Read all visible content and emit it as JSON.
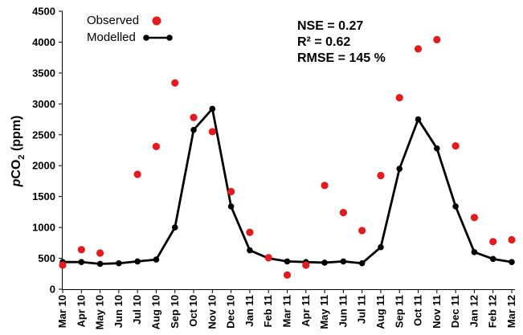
{
  "chart_data": {
    "type": "line",
    "title": "",
    "xlabel": "",
    "ylabel": {
      "italic_prefix": "p",
      "main": "CO",
      "subscript": "2",
      "suffix": " (ppm)"
    },
    "ylim": [
      0,
      4500
    ],
    "yticks": [
      "0",
      "500",
      "1000",
      "1500",
      "2000",
      "2500",
      "3000",
      "3500",
      "4000",
      "4500"
    ],
    "ytick_values": [
      0,
      500,
      1000,
      1500,
      2000,
      2500,
      3000,
      3500,
      4000,
      4500
    ],
    "categories": [
      "Mar 10",
      "Apr 10",
      "May 10",
      "Jun 10",
      "Jul 10",
      "Aug 10",
      "Sep 10",
      "Oct 10",
      "Nov 10",
      "Dec 10",
      "Jan 11",
      "Feb 11",
      "Mar 11",
      "Apr 11",
      "May 11",
      "Jun 11",
      "Jul 11",
      "Aug 11",
      "Sep 11",
      "Oct 11",
      "Nov 11",
      "Dec 11",
      "Jan 12",
      "Feb 12",
      "Mar 12"
    ],
    "series": [
      {
        "name": "Observed",
        "style": "scatter",
        "color": "#e41a1c",
        "values": [
          390,
          640,
          585,
          null,
          1860,
          2310,
          3340,
          2780,
          2550,
          1580,
          920,
          510,
          230,
          390,
          1680,
          1240,
          950,
          1840,
          3100,
          3890,
          4040,
          2320,
          1160,
          770,
          800
        ]
      },
      {
        "name": "Modelled",
        "style": "line-marker",
        "color": "#000000",
        "values": [
          440,
          440,
          410,
          420,
          450,
          480,
          1000,
          2580,
          2920,
          1340,
          630,
          500,
          450,
          440,
          430,
          450,
          420,
          680,
          1950,
          2750,
          2280,
          1340,
          600,
          490,
          440
        ]
      }
    ],
    "legend": {
      "position": "top-left",
      "entries": [
        "Observed",
        "Modelled"
      ]
    },
    "annotations": [
      "NSE = 0.27",
      "R² = 0.62",
      "RMSE = 145 %"
    ],
    "grid": false
  }
}
